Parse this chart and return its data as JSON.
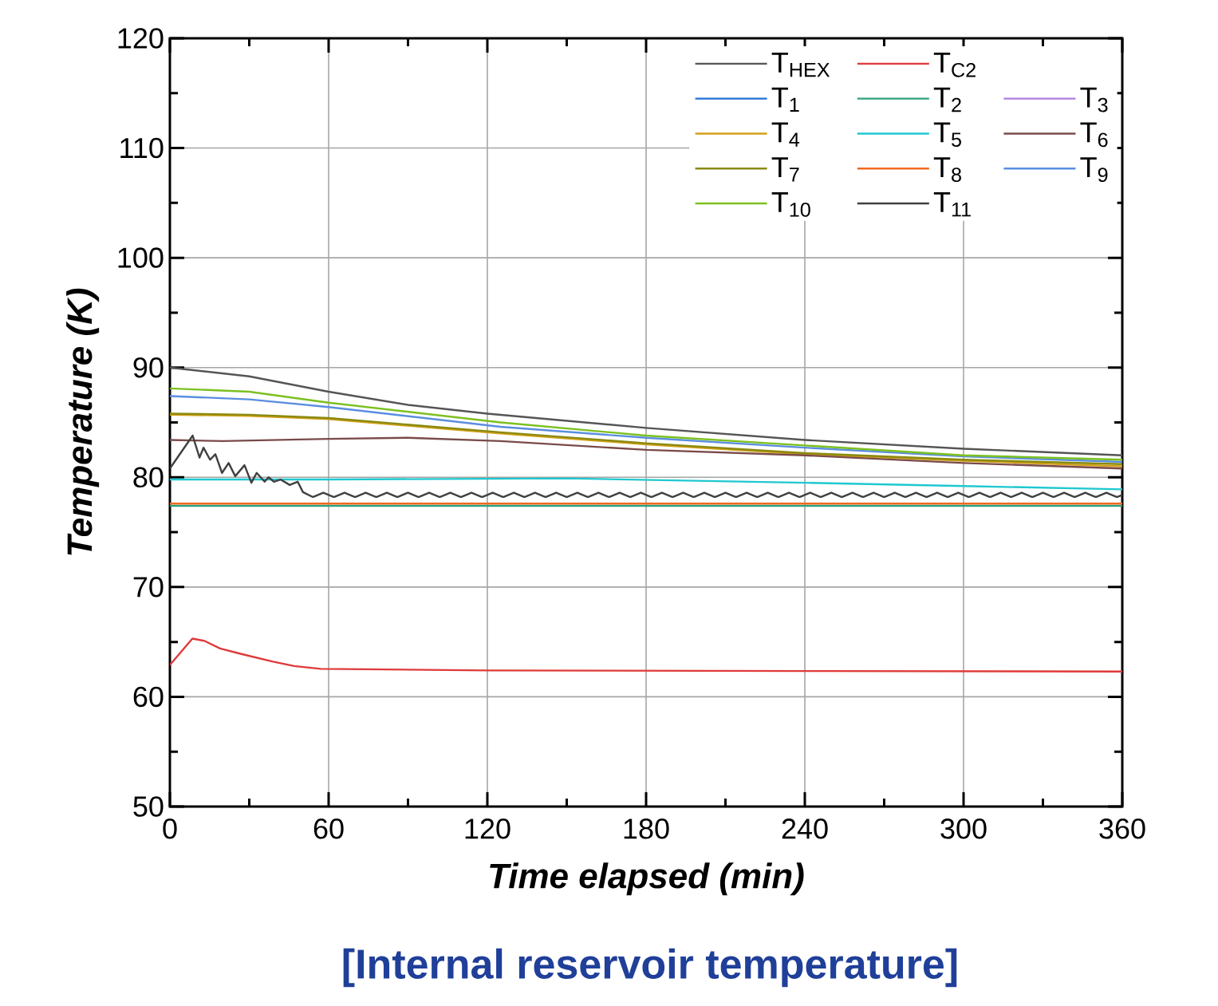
{
  "chart_data": {
    "type": "line",
    "xlabel": "Time elapsed (min)",
    "ylabel": "Temperature (K)",
    "annotations": [
      "[Internal reservoir temperature]"
    ],
    "xlim": [
      0,
      360
    ],
    "xticks": [
      0,
      60,
      120,
      180,
      240,
      300,
      360
    ],
    "ylim": [
      50,
      120
    ],
    "yticks": [
      50,
      60,
      70,
      80,
      90,
      100,
      110,
      120
    ],
    "grid": true,
    "legend": "top right",
    "line_style": "solid",
    "series": [
      {
        "name": "T$_{HEX}$",
        "color": "#555555",
        "x": [
          0,
          30,
          60,
          90,
          120,
          180,
          240,
          300,
          360
        ],
        "values": [
          90.0,
          89.2,
          87.8,
          86.6,
          85.8,
          84.5,
          83.4,
          82.6,
          82.0
        ]
      },
      {
        "name": "T$_{C2}$",
        "color": "#e03a3a",
        "x": [
          0,
          8.5,
          13,
          19,
          27,
          39,
          47,
          57,
          120,
          240,
          360
        ],
        "values": [
          62.9,
          65.3,
          65.1,
          64.4,
          63.9,
          63.2,
          62.8,
          62.55,
          62.4,
          62.35,
          62.3
        ]
      },
      {
        "name": "T$_{1}$",
        "color": "#1f6fd6"
      },
      {
        "name": "T$_{2}$",
        "color": "#2ca07a",
        "x": [
          0,
          360
        ],
        "values": [
          77.4,
          77.4
        ]
      },
      {
        "name": "T$_{3}$",
        "color": "#b07ce0"
      },
      {
        "name": "T$_{4}$",
        "color": "#d4a017",
        "x": [
          0,
          30,
          60,
          125,
          180,
          240,
          300,
          360
        ],
        "values": [
          85.7,
          85.6,
          85.3,
          84.0,
          83.0,
          82.1,
          81.5,
          81.0
        ]
      },
      {
        "name": "T$_{5}$",
        "color": "#1fc8d0",
        "x": [
          0,
          60,
          150,
          240,
          300,
          360
        ],
        "values": [
          79.8,
          79.8,
          79.9,
          79.5,
          79.2,
          78.9
        ]
      },
      {
        "name": "T$_{6}$",
        "color": "#7a4a4a",
        "x": [
          0,
          20,
          60,
          90,
          125,
          180,
          240,
          300,
          360
        ],
        "values": [
          83.4,
          83.3,
          83.5,
          83.6,
          83.3,
          82.5,
          82.0,
          81.3,
          80.8
        ]
      },
      {
        "name": "T$_{7}$",
        "color": "#8a8a10",
        "x": [
          0,
          30,
          60,
          125,
          180,
          240,
          300,
          360
        ],
        "values": [
          85.8,
          85.7,
          85.4,
          84.1,
          83.1,
          82.2,
          81.6,
          81.2
        ]
      },
      {
        "name": "T$_{8}$",
        "color": "#f06a20",
        "x": [
          0,
          360
        ],
        "values": [
          77.6,
          77.6
        ]
      },
      {
        "name": "T$_{9}$",
        "color": "#5a8ee0",
        "x": [
          0,
          30,
          60,
          125,
          180,
          240,
          300,
          360
        ],
        "values": [
          87.4,
          87.1,
          86.4,
          84.6,
          83.6,
          82.7,
          81.9,
          81.4
        ]
      },
      {
        "name": "T$_{10}$",
        "color": "#7cc020",
        "x": [
          0,
          30,
          60,
          125,
          180,
          240,
          300,
          360
        ],
        "values": [
          88.1,
          87.8,
          86.8,
          85.0,
          83.8,
          82.9,
          82.0,
          81.6
        ]
      },
      {
        "name": "T$_{11}$",
        "color": "#404040",
        "x": [
          0,
          8.6,
          11.2,
          12.7,
          15.2,
          17.2,
          19.7,
          22.2,
          24.7,
          28.2,
          30.8,
          32.8,
          35.8,
          37.3,
          39.3,
          41.8,
          45.3,
          48.3,
          50.3,
          54,
          58,
          62,
          66,
          70,
          74,
          78,
          82,
          86,
          90,
          94,
          98,
          102,
          106,
          110,
          114,
          118,
          122,
          126,
          130,
          134,
          138,
          142,
          146,
          150,
          154,
          158,
          162,
          166,
          170,
          174,
          178,
          182,
          186,
          190,
          194,
          198,
          202,
          206,
          210,
          214,
          218,
          222,
          226,
          230,
          234,
          238,
          242,
          246,
          250,
          254,
          258,
          262,
          266,
          270,
          274,
          278,
          282,
          286,
          290,
          294,
          298,
          302,
          306,
          310,
          314,
          318,
          322,
          326,
          330,
          334,
          338,
          342,
          346,
          350,
          354,
          358,
          360
        ],
        "values": [
          80.8,
          83.8,
          81.8,
          82.7,
          81.6,
          82.1,
          80.4,
          81.3,
          80.1,
          81.1,
          79.5,
          80.4,
          79.6,
          80.0,
          79.6,
          79.8,
          79.3,
          79.6,
          78.65,
          78.2,
          78.6,
          78.2,
          78.6,
          78.2,
          78.6,
          78.2,
          78.6,
          78.2,
          78.6,
          78.2,
          78.6,
          78.2,
          78.6,
          78.2,
          78.6,
          78.2,
          78.6,
          78.2,
          78.6,
          78.2,
          78.6,
          78.2,
          78.6,
          78.2,
          78.6,
          78.2,
          78.6,
          78.2,
          78.6,
          78.2,
          78.6,
          78.2,
          78.6,
          78.2,
          78.6,
          78.2,
          78.6,
          78.2,
          78.6,
          78.2,
          78.6,
          78.2,
          78.6,
          78.2,
          78.6,
          78.2,
          78.6,
          78.2,
          78.6,
          78.2,
          78.6,
          78.2,
          78.6,
          78.2,
          78.6,
          78.2,
          78.6,
          78.2,
          78.6,
          78.2,
          78.6,
          78.2,
          78.6,
          78.2,
          78.6,
          78.2,
          78.6,
          78.2,
          78.6,
          78.2,
          78.6,
          78.2,
          78.6,
          78.2,
          78.6,
          78.2,
          78.4
        ]
      }
    ]
  }
}
